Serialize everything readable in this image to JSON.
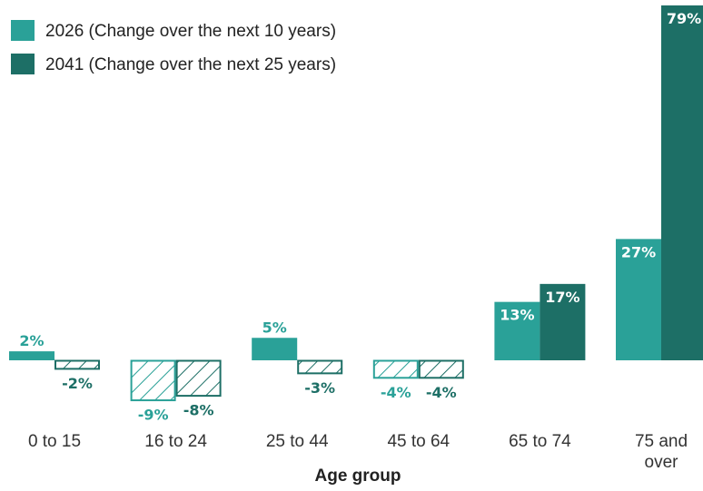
{
  "chart_data": {
    "type": "bar",
    "xlabel": "Age group",
    "categories": [
      [
        "0 to 15"
      ],
      [
        "16 to 24"
      ],
      [
        "25 to 44"
      ],
      [
        "45 to 64"
      ],
      [
        "65 to 74"
      ],
      [
        "75 and",
        "over"
      ]
    ],
    "series": [
      {
        "name": "2026 (Change over the next 10 years)",
        "color": "#2aa198",
        "values": [
          2,
          -9,
          5,
          -4,
          13,
          27
        ],
        "labels": [
          "2%",
          "-9%",
          "5%",
          "-4%",
          "13%",
          "27%"
        ]
      },
      {
        "name": "2041 (Change over the next 25 years)",
        "color": "#1d6f66",
        "values": [
          -2,
          -8,
          -3,
          -4,
          17,
          79
        ],
        "labels": [
          "-2%",
          "-8%",
          "-3%",
          "-4%",
          "17%",
          "79%"
        ]
      }
    ],
    "negative_bar_style": "hatched outline",
    "legend_position": "top-left",
    "grid": false
  }
}
